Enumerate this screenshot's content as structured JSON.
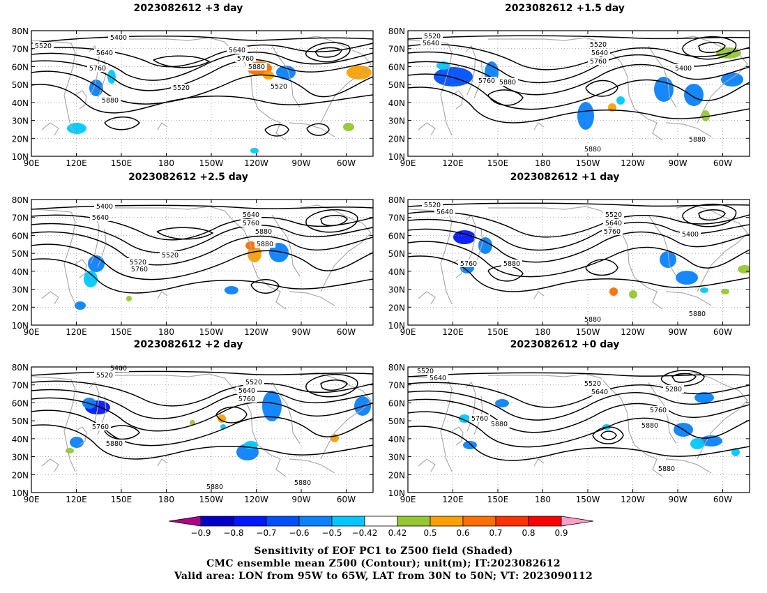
{
  "panels": [
    {
      "title": "2023082612 +3 day",
      "col": 0,
      "row": 0
    },
    {
      "title": "2023082612 +1.5 day",
      "col": 1,
      "row": 0
    },
    {
      "title": "2023082612 +2.5 day",
      "col": 0,
      "row": 1
    },
    {
      "title": "2023082612 +1 day",
      "col": 1,
      "row": 1
    },
    {
      "title": "2023082612 +2 day",
      "col": 0,
      "row": 2
    },
    {
      "title": "2023082612 +0 day",
      "col": 1,
      "row": 2
    }
  ],
  "lat_labels": [
    "80N",
    "70N",
    "60N",
    "50N",
    "40N",
    "30N",
    "20N",
    "10N"
  ],
  "lon_labels": [
    "90E",
    "120E",
    "150E",
    "180",
    "150W",
    "120W",
    "90W",
    "60W"
  ],
  "contour_labels": {
    "p0": [
      "5400",
      "5520",
      "5640",
      "5760",
      "5880",
      "5520",
      "5640",
      "5760",
      "5880",
      "5520"
    ],
    "p1": [
      "5520",
      "5640",
      "5520",
      "5640",
      "5760",
      "5400",
      "5760",
      "5880",
      "5880",
      "5880"
    ],
    "p2": [
      "5400",
      "5640",
      "5520",
      "5640",
      "5760",
      "5880",
      "5520",
      "5760",
      "5880"
    ],
    "p3": [
      "5520",
      "5640",
      "5520",
      "5640",
      "5760",
      "5400",
      "5760",
      "5880",
      "5880",
      "5880"
    ],
    "p4": [
      "5520",
      "5400",
      "5520",
      "5640",
      "5760",
      "5760",
      "5880",
      "5880",
      "5880"
    ],
    "p5": [
      "5520",
      "5640",
      "5520",
      "5640",
      "5280",
      "5760",
      "5760",
      "5880",
      "5880",
      "5880"
    ]
  },
  "colorbar": {
    "ticks": [
      "−0.9",
      "−0.8",
      "−0.7",
      "−0.6",
      "−0.5",
      "−0.42",
      "0.42",
      "0.5",
      "0.6",
      "0.7",
      "0.8",
      "0.9"
    ],
    "colors": [
      "#b0008c",
      "#0000c8",
      "#0018ff",
      "#0050ff",
      "#0a82ff",
      "#00c8ff",
      "#ffffff",
      "#96c832",
      "#ffa000",
      "#ff6e00",
      "#ff3200",
      "#ff0000",
      "#ff9ec8"
    ]
  },
  "captions": [
    "Sensitivity of EOF PC1 to Z500 field (Shaded)",
    "CMC ensemble mean Z500 (Contour); unit(m); IT:2023082612",
    "Valid area: LON from 95W to 65W, LAT from 30N to 50N; VT: 2023090112"
  ]
}
